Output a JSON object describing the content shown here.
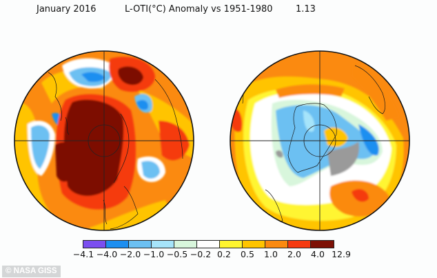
{
  "header": {
    "date": "January 2016",
    "title": "L-OTI(°C) Anomaly vs 1951-1980",
    "global_mean": "1.13"
  },
  "maps": [
    {
      "name": "northern-hemisphere",
      "projection": "polar",
      "hemisphere": "north"
    },
    {
      "name": "southern-hemisphere",
      "projection": "polar",
      "hemisphere": "south"
    }
  ],
  "colorbar": {
    "unit": "°C",
    "ticks": [
      "−4.1",
      "−4.0",
      "−2.0",
      "−1.0",
      "−0.5",
      "−0.2",
      "0.2",
      "0.5",
      "1.0",
      "2.0",
      "4.0",
      "12.9"
    ],
    "bins": [
      {
        "range": "-4.1 to -4.0",
        "color": "#7b4ff0"
      },
      {
        "range": "-4.0 to -2.0",
        "color": "#1e8ff0"
      },
      {
        "range": "-2.0 to -1.0",
        "color": "#6cc0f2"
      },
      {
        "range": "-1.0 to -0.5",
        "color": "#a6e4fa"
      },
      {
        "range": "-0.5 to -0.2",
        "color": "#d8f6dc"
      },
      {
        "range": "-0.2 to 0.2",
        "color": "#ffffff"
      },
      {
        "range": "0.2 to 0.5",
        "color": "#fff530"
      },
      {
        "range": "0.5 to 1.0",
        "color": "#ffc400"
      },
      {
        "range": "1.0 to 2.0",
        "color": "#fb8a10"
      },
      {
        "range": "2.0 to 4.0",
        "color": "#f53a10"
      },
      {
        "range": "4.0 to 12.9",
        "color": "#7d1106"
      }
    ],
    "no_data_color": "#9a9a9a"
  },
  "credit": "© NASA GISS"
}
